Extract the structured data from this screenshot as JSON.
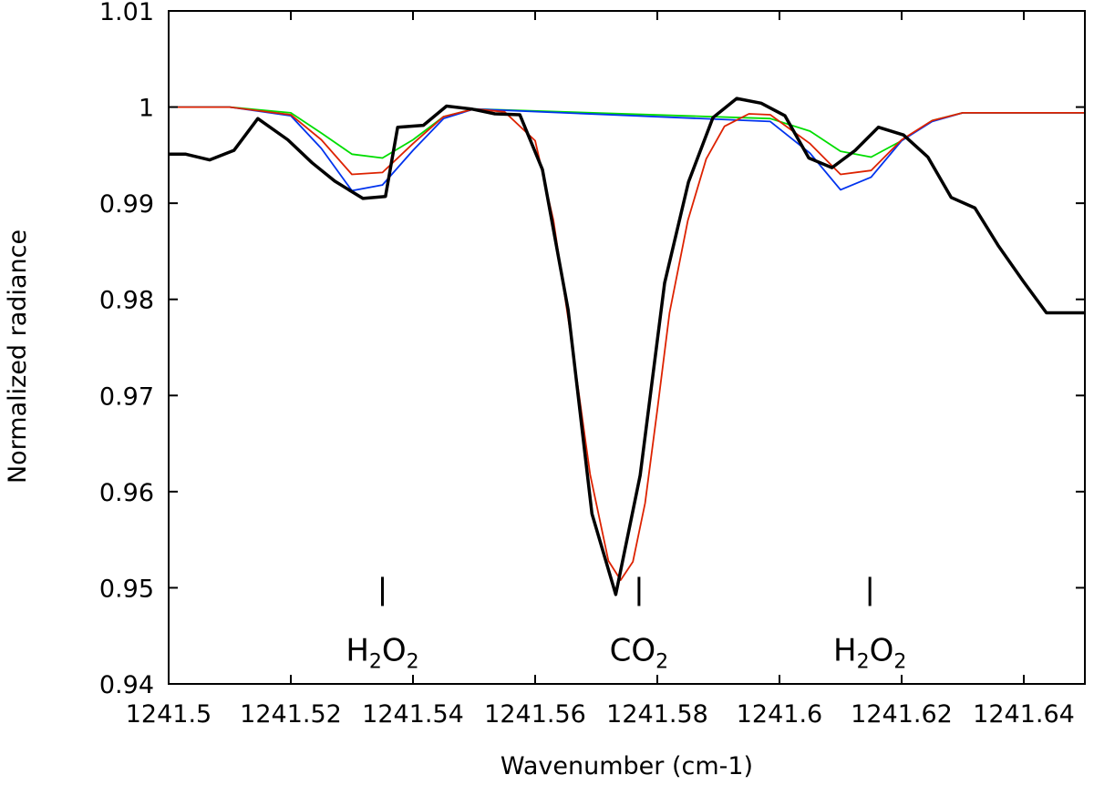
{
  "chart_data": {
    "type": "line",
    "title": "",
    "xlabel": "Wavenumber (cm-1)",
    "ylabel": "Normalized radiance",
    "xlim": [
      1241.5,
      1241.65
    ],
    "ylim": [
      0.94,
      1.01
    ],
    "x_ticks": [
      1241.5,
      1241.52,
      1241.54,
      1241.56,
      1241.58,
      1241.6,
      1241.62,
      1241.64
    ],
    "x_tick_labels": [
      "1241.5",
      "1241.52",
      "1241.54",
      "1241.56",
      "1241.58",
      "1241.6",
      "1241.62",
      "1241.64"
    ],
    "y_ticks": [
      0.94,
      0.95,
      0.96,
      0.97,
      0.98,
      0.99,
      1.0,
      1.01
    ],
    "y_tick_labels": [
      "0.94",
      "0.95",
      "0.96",
      "0.97",
      "0.98",
      "0.99",
      "1",
      "1.01"
    ],
    "grid": false,
    "series": [
      {
        "color": "#000000",
        "style": "thick",
        "x": [
          1241.5,
          1241.5028,
          1241.5067,
          1241.5107,
          1241.5146,
          1241.5195,
          1241.5235,
          1241.5272,
          1241.5318,
          1241.5355,
          1241.5375,
          1241.5417,
          1241.5455,
          1241.5496,
          1241.5534,
          1241.5575,
          1241.5612,
          1241.5654,
          1241.5693,
          1241.5732,
          1241.5772,
          1241.5812,
          1241.5851,
          1241.5891,
          1241.593,
          1241.597,
          1241.6009,
          1241.6048,
          1241.6086,
          1241.6124,
          1241.6162,
          1241.6203,
          1241.6243,
          1241.6281,
          1241.632,
          1241.6358,
          1241.6399,
          1241.6437,
          1241.6475,
          1241.65
        ],
        "y": [
          0.9951,
          0.9951,
          0.9945,
          0.9955,
          0.9988,
          0.9966,
          0.9942,
          0.9923,
          0.9905,
          0.9907,
          0.9979,
          0.9981,
          1.0001,
          0.9998,
          0.9993,
          0.9992,
          0.9935,
          0.9789,
          0.9577,
          0.9493,
          0.9617,
          0.9817,
          0.9922,
          0.9989,
          1.0009,
          1.0004,
          0.9991,
          0.9947,
          0.9937,
          0.9955,
          0.9979,
          0.9971,
          0.9948,
          0.9906,
          0.9895,
          0.9856,
          0.9819,
          0.9786,
          0.9786,
          0.9786
        ]
      },
      {
        "color": "#00dd00",
        "style": "thin",
        "x": [
          1241.5,
          1241.51,
          1241.52,
          1241.525,
          1241.53,
          1241.535,
          1241.54,
          1241.545,
          1241.55,
          1241.5985,
          1241.605,
          1241.61,
          1241.615,
          1241.62,
          1241.625,
          1241.63,
          1241.635,
          1241.64,
          1241.645,
          1241.65
        ],
        "y": [
          1.0,
          1.0,
          0.9994,
          0.9973,
          0.9951,
          0.9947,
          0.9966,
          0.999,
          0.9998,
          0.9988,
          0.9975,
          0.9954,
          0.9948,
          0.9965,
          0.9986,
          0.9994,
          0.9994,
          0.9994,
          0.9994,
          0.9994
        ]
      },
      {
        "color": "#0033ee",
        "style": "thin",
        "x": [
          1241.5,
          1241.51,
          1241.52,
          1241.525,
          1241.53,
          1241.535,
          1241.54,
          1241.545,
          1241.55,
          1241.5985,
          1241.605,
          1241.61,
          1241.615,
          1241.62,
          1241.625,
          1241.63,
          1241.635,
          1241.64,
          1241.645,
          1241.65
        ],
        "y": [
          1.0,
          1.0,
          0.9991,
          0.9957,
          0.9913,
          0.9919,
          0.9955,
          0.9988,
          0.9998,
          0.9985,
          0.9952,
          0.9914,
          0.9927,
          0.9965,
          0.9985,
          0.9994,
          0.9994,
          0.9994,
          0.9994,
          0.9994
        ]
      },
      {
        "color": "#dd2200",
        "style": "thin",
        "x": [
          1241.5,
          1241.51,
          1241.52,
          1241.525,
          1241.53,
          1241.535,
          1241.54,
          1241.545,
          1241.55,
          1241.555,
          1241.56,
          1241.563,
          1241.566,
          1241.569,
          1241.572,
          1241.574,
          1241.576,
          1241.578,
          1241.58,
          1241.582,
          1241.585,
          1241.588,
          1241.591,
          1241.595,
          1241.5985,
          1241.605,
          1241.61,
          1241.615,
          1241.62,
          1241.625,
          1241.63,
          1241.635,
          1241.64,
          1241.645,
          1241.65
        ],
        "y": [
          1.0,
          1.0,
          0.9992,
          0.9966,
          0.993,
          0.9932,
          0.9962,
          0.999,
          0.9998,
          0.9995,
          0.9965,
          0.9882,
          0.9755,
          0.9618,
          0.9528,
          0.9508,
          0.9527,
          0.9588,
          0.9685,
          0.9786,
          0.9882,
          0.9946,
          0.998,
          0.9993,
          0.9992,
          0.9962,
          0.993,
          0.9934,
          0.9966,
          0.9986,
          0.9994,
          0.9994,
          0.9994,
          0.9994,
          0.9994
        ]
      }
    ],
    "annotations": [
      {
        "x": 1241.535,
        "label_main": "H",
        "sub1": "2",
        "mid": "O",
        "sub2": "2"
      },
      {
        "x": 1241.577,
        "label_main": "CO",
        "sub1": "2",
        "mid": "",
        "sub2": ""
      },
      {
        "x": 1241.6148,
        "label_main": "H",
        "sub1": "2",
        "mid": "O",
        "sub2": "2"
      }
    ],
    "marker_y": 0.95
  }
}
